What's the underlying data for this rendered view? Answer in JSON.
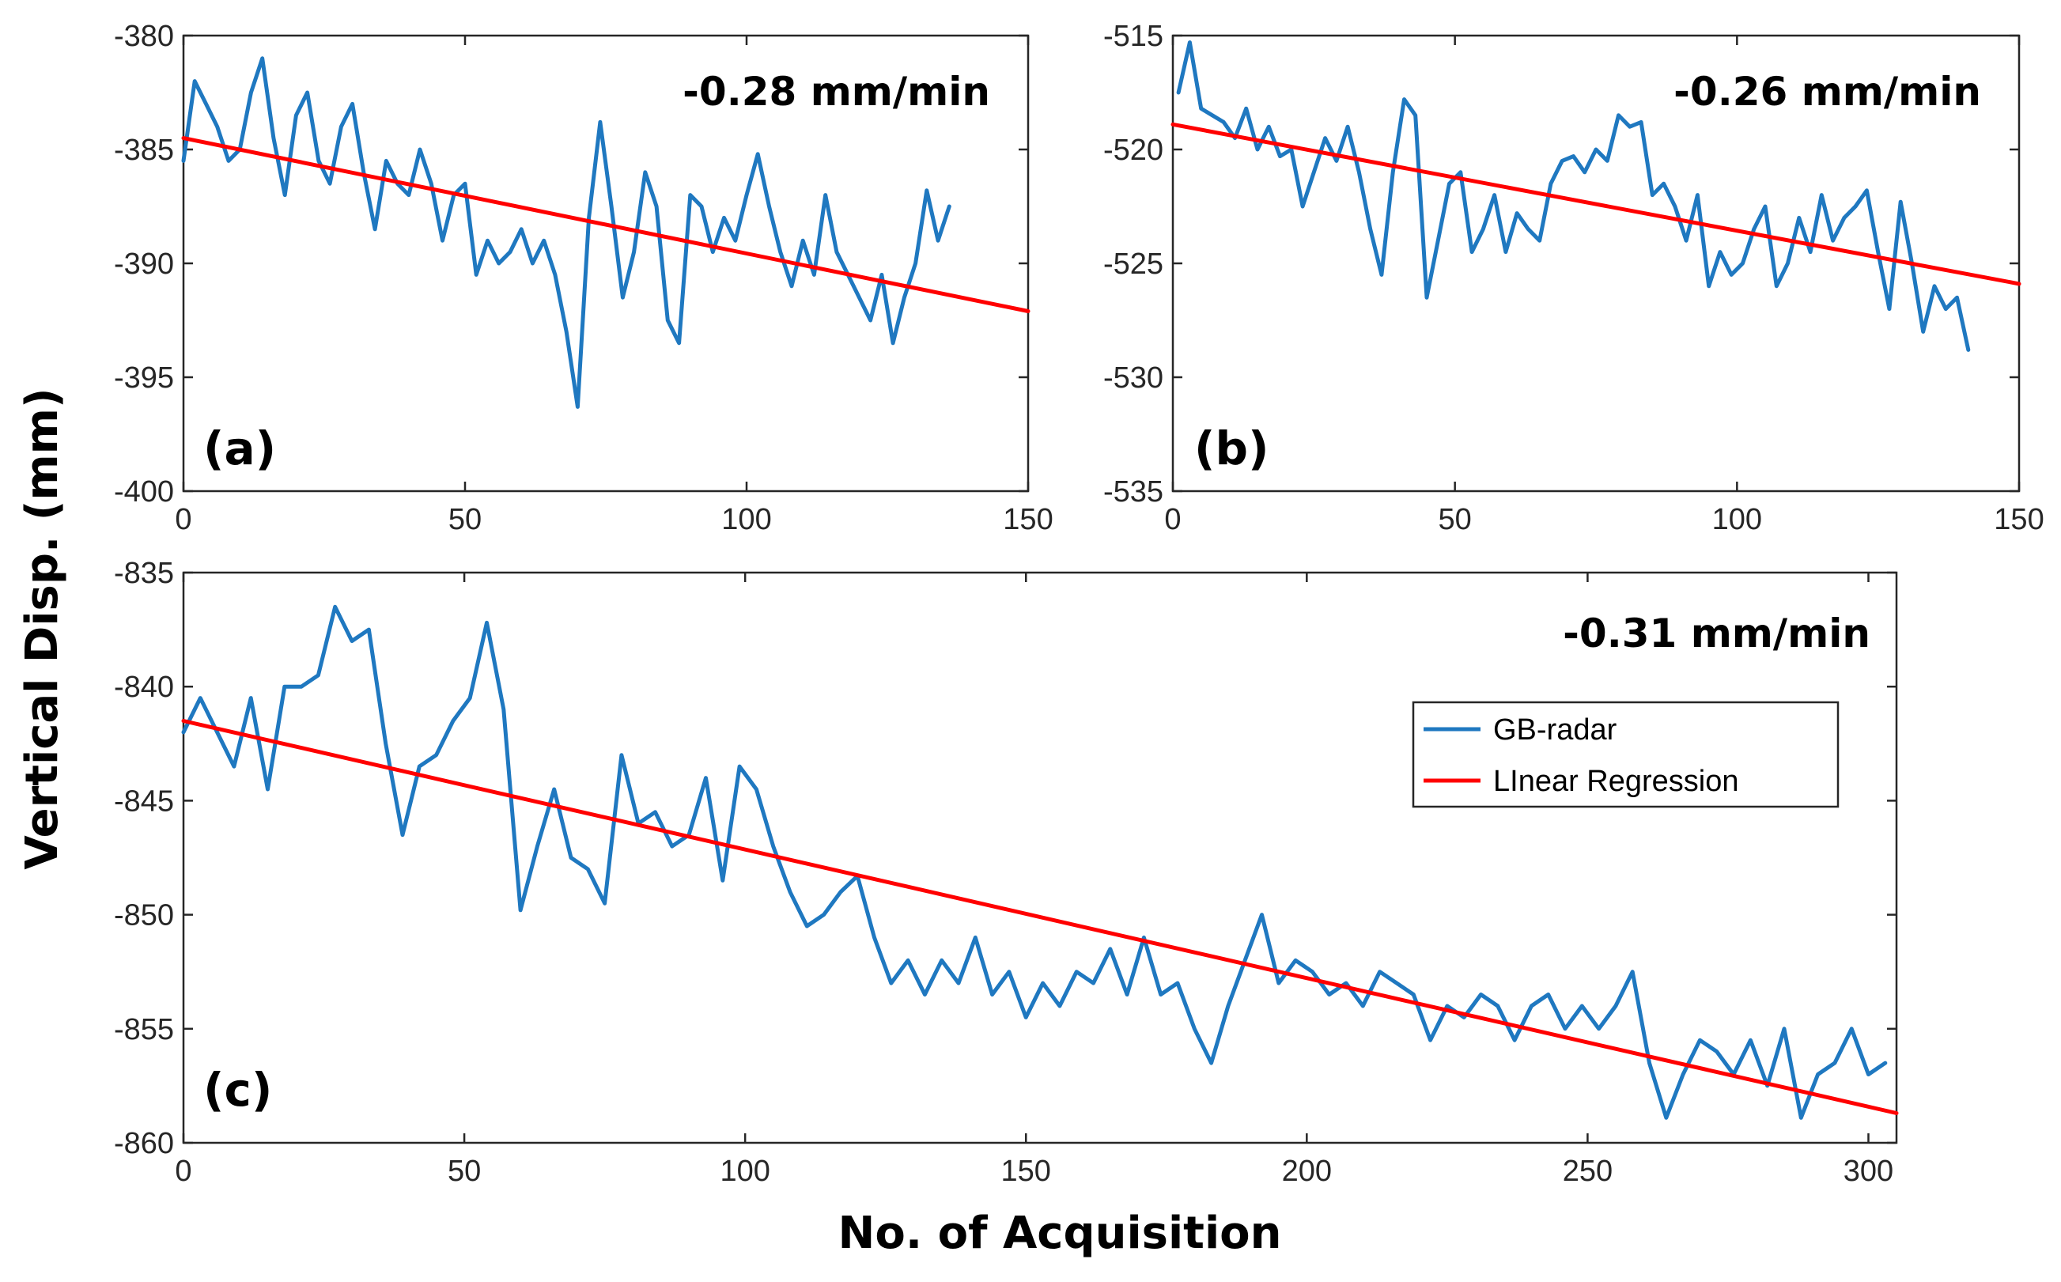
{
  "figure": {
    "ylabel": "Vertical Disp. (mm)",
    "xlabel": "No. of Acquisition"
  },
  "colors": {
    "radar": "#1f78c0",
    "regression": "#ff0000",
    "axis": "#262626"
  },
  "chart_data": [
    {
      "id": "a",
      "type": "line",
      "panel_label": "(a)",
      "annotation": "-0.28 mm/min",
      "xlim": [
        0,
        150
      ],
      "ylim": [
        -400,
        -380
      ],
      "xticks": [
        0,
        50,
        100,
        150
      ],
      "yticks": [
        -380,
        -385,
        -390,
        -395,
        -400
      ],
      "series": [
        {
          "name": "GB-radar",
          "x": [
            0,
            2,
            4,
            6,
            8,
            10,
            12,
            14,
            16,
            18,
            20,
            22,
            24,
            26,
            28,
            30,
            32,
            34,
            36,
            38,
            40,
            42,
            44,
            46,
            48,
            50,
            52,
            54,
            56,
            58,
            60,
            62,
            64,
            66,
            68,
            70,
            72,
            74,
            76,
            78,
            80,
            82,
            84,
            86,
            88,
            90,
            92,
            94,
            96,
            98,
            100,
            102,
            104,
            106,
            108,
            110,
            112,
            114,
            116,
            118,
            120,
            122,
            124,
            126,
            128,
            130,
            132,
            134,
            136
          ],
          "values": [
            -385.5,
            -382.0,
            -383.0,
            -384.0,
            -385.5,
            -385.0,
            -382.5,
            -381.0,
            -384.5,
            -387.0,
            -383.5,
            -382.5,
            -385.5,
            -386.5,
            -384.0,
            -383.0,
            -386.0,
            -388.5,
            -385.5,
            -386.5,
            -387.0,
            -385.0,
            -386.5,
            -389.0,
            -387.0,
            -386.5,
            -390.5,
            -389.0,
            -390.0,
            -389.5,
            -388.5,
            -390.0,
            -389.0,
            -390.5,
            -393.0,
            -396.3,
            -388.0,
            -383.8,
            -387.5,
            -391.5,
            -389.5,
            -386.0,
            -387.5,
            -392.5,
            -393.5,
            -387.0,
            -387.5,
            -389.5,
            -388.0,
            -389.0,
            -387.0,
            -385.2,
            -387.5,
            -389.5,
            -391.0,
            -389.0,
            -390.5,
            -387.0,
            -389.5,
            -390.5,
            -391.5,
            -392.5,
            -390.5,
            -393.5,
            -391.5,
            -390.0,
            -386.8,
            -389.0,
            -387.5
          ]
        },
        {
          "name": "Linear Regression",
          "x": [
            0,
            150
          ],
          "values": [
            -384.5,
            -392.1
          ]
        }
      ]
    },
    {
      "id": "b",
      "type": "line",
      "panel_label": "(b)",
      "annotation": "-0.26 mm/min",
      "xlim": [
        0,
        150
      ],
      "ylim": [
        -535,
        -515
      ],
      "xticks": [
        0,
        50,
        100,
        150
      ],
      "yticks": [
        -515,
        -520,
        -525,
        -530,
        -535
      ],
      "series": [
        {
          "name": "GB-radar",
          "x": [
            1,
            3,
            5,
            7,
            9,
            11,
            13,
            15,
            17,
            19,
            21,
            23,
            25,
            27,
            29,
            31,
            33,
            35,
            37,
            39,
            41,
            43,
            45,
            47,
            49,
            51,
            53,
            55,
            57,
            59,
            61,
            63,
            65,
            67,
            69,
            71,
            73,
            75,
            77,
            79,
            81,
            83,
            85,
            87,
            89,
            91,
            93,
            95,
            97,
            99,
            101,
            103,
            105,
            107,
            109,
            111,
            113,
            115,
            117,
            119,
            121,
            123,
            125,
            127,
            129,
            131,
            133,
            135,
            137,
            139,
            141
          ],
          "values": [
            -517.5,
            -515.3,
            -518.2,
            -518.5,
            -518.8,
            -519.5,
            -518.2,
            -520.0,
            -519.0,
            -520.3,
            -520.0,
            -522.5,
            -521.0,
            -519.5,
            -520.5,
            -519.0,
            -521.0,
            -523.5,
            -525.5,
            -521.0,
            -517.8,
            -518.5,
            -526.5,
            -524.0,
            -521.5,
            -521.0,
            -524.5,
            -523.5,
            -522.0,
            -524.5,
            -522.8,
            -523.5,
            -524.0,
            -521.5,
            -520.5,
            -520.3,
            -521.0,
            -520.0,
            -520.5,
            -518.5,
            -519.0,
            -518.8,
            -522.0,
            -521.5,
            -522.5,
            -524.0,
            -522.0,
            -526.0,
            -524.5,
            -525.5,
            -525.0,
            -523.5,
            -522.5,
            -526.0,
            -525.0,
            -523.0,
            -524.5,
            -522.0,
            -524.0,
            -523.0,
            -522.5,
            -521.8,
            -524.5,
            -527.0,
            -522.3,
            -525.0,
            -528.0,
            -526.0,
            -527.0,
            -526.5,
            -528.8
          ]
        },
        {
          "name": "Linear Regression",
          "x": [
            0,
            150
          ],
          "values": [
            -518.9,
            -525.9
          ]
        }
      ]
    },
    {
      "id": "c",
      "type": "line",
      "panel_label": "(c)",
      "annotation": "-0.31 mm/min",
      "xlim": [
        0,
        305
      ],
      "ylim": [
        -860,
        -835
      ],
      "xticks": [
        0,
        50,
        100,
        150,
        200,
        250,
        300
      ],
      "yticks": [
        -835,
        -840,
        -845,
        -850,
        -855,
        -860
      ],
      "legend": {
        "position": "right",
        "entries": [
          "GB-radar",
          "LInear Regression"
        ]
      },
      "series": [
        {
          "name": "GB-radar",
          "x": [
            0,
            3,
            6,
            9,
            12,
            15,
            18,
            21,
            24,
            27,
            30,
            33,
            36,
            39,
            42,
            45,
            48,
            51,
            54,
            57,
            60,
            63,
            66,
            69,
            72,
            75,
            78,
            81,
            84,
            87,
            90,
            93,
            96,
            99,
            102,
            105,
            108,
            111,
            114,
            117,
            120,
            123,
            126,
            129,
            132,
            135,
            138,
            141,
            144,
            147,
            150,
            153,
            156,
            159,
            162,
            165,
            168,
            171,
            174,
            177,
            180,
            183,
            186,
            189,
            192,
            195,
            198,
            201,
            204,
            207,
            210,
            213,
            216,
            219,
            222,
            225,
            228,
            231,
            234,
            237,
            240,
            243,
            246,
            249,
            252,
            255,
            258,
            261,
            264,
            267,
            270,
            273,
            276,
            279,
            282,
            285,
            288,
            291,
            294,
            297,
            300,
            303
          ],
          "values": [
            -842.0,
            -840.5,
            -842.0,
            -843.5,
            -840.5,
            -844.5,
            -840.0,
            -840.0,
            -839.5,
            -836.5,
            -838.0,
            -837.5,
            -842.5,
            -846.5,
            -843.5,
            -843.0,
            -841.5,
            -840.5,
            -837.2,
            -841.0,
            -849.8,
            -847.0,
            -844.5,
            -847.5,
            -848.0,
            -849.5,
            -843.0,
            -846.0,
            -845.5,
            -847.0,
            -846.5,
            -844.0,
            -848.5,
            -843.5,
            -844.5,
            -847.0,
            -849.0,
            -850.5,
            -850.0,
            -849.0,
            -848.3,
            -851.0,
            -853.0,
            -852.0,
            -853.5,
            -852.0,
            -853.0,
            -851.0,
            -853.5,
            -852.5,
            -854.5,
            -853.0,
            -854.0,
            -852.5,
            -853.0,
            -851.5,
            -853.5,
            -851.0,
            -853.5,
            -853.0,
            -855.0,
            -856.5,
            -854.0,
            -852.0,
            -850.0,
            -853.0,
            -852.0,
            -852.5,
            -853.5,
            -853.0,
            -854.0,
            -852.5,
            -853.0,
            -853.5,
            -855.5,
            -854.0,
            -854.5,
            -853.5,
            -854.0,
            -855.5,
            -854.0,
            -853.5,
            -855.0,
            -854.0,
            -855.0,
            -854.0,
            -852.5,
            -856.5,
            -858.9,
            -857.0,
            -855.5,
            -856.0,
            -857.0,
            -855.5,
            -857.5,
            -855.0,
            -858.9,
            -857.0,
            -856.5,
            -855.0,
            -857.0,
            -856.5
          ]
        },
        {
          "name": "LInear Regression",
          "x": [
            0,
            305
          ],
          "values": [
            -841.5,
            -858.7
          ]
        }
      ]
    }
  ]
}
